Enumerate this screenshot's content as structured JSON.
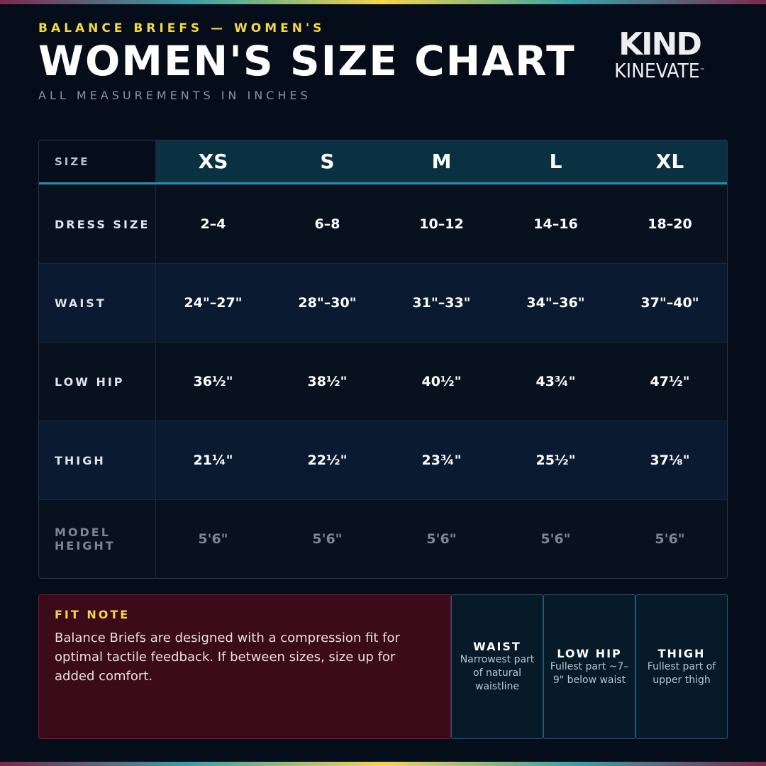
{
  "header": {
    "eyebrow": "BALANCE BRIEFS — WOMEN'S",
    "title": "WOMEN'S SIZE CHART",
    "subtitle": "ALL MEASUREMENTS IN INCHES"
  },
  "logo": {
    "mark": "KIND",
    "wordmark": "KINEVATE",
    "trademark": "™"
  },
  "table": {
    "header": [
      "SIZE",
      "XS",
      "S",
      "M",
      "L",
      "XL"
    ],
    "rows": [
      [
        "DRESS SIZE",
        "2–4",
        "6–8",
        "10–12",
        "14–16",
        "18–20"
      ],
      [
        "WAIST",
        "24\"–27\"",
        "28\"–30\"",
        "31\"–33\"",
        "34\"–36\"",
        "37\"–40\""
      ],
      [
        "LOW HIP",
        "36½\"",
        "38½\"",
        "40½\"",
        "43¾\"",
        "47½\""
      ],
      [
        "THIGH",
        "21¼\"",
        "22½\"",
        "23¾\"",
        "25½\"",
        "37⅛\""
      ],
      [
        "MODEL HEIGHT",
        "5'6\"",
        "5'6\"",
        "5'6\"",
        "5'6\"",
        "5'6\""
      ]
    ]
  },
  "fit_note": {
    "label": "FIT NOTE",
    "text": "Balance Briefs are designed with a compression fit for optimal tactile feedback. If between sizes, size up for added comfort."
  },
  "guides": [
    {
      "label": "WAIST",
      "text": "Narrowest part of natural waistline"
    },
    {
      "label": "LOW HIP",
      "text": "Fullest part ~7–9\" below waist"
    },
    {
      "label": "THIGH",
      "text": "Fullest part of upper thigh"
    }
  ]
}
